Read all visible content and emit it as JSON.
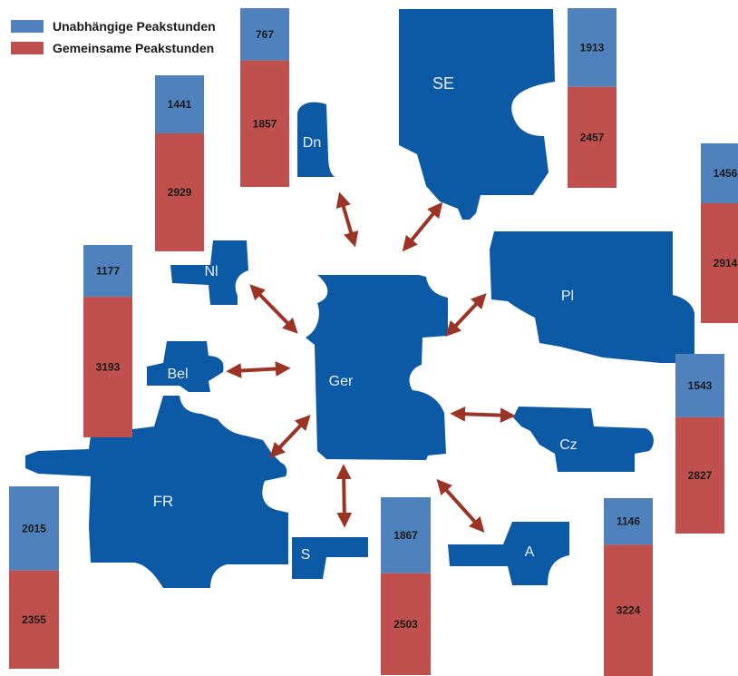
{
  "legend": {
    "independent_label": "Unabhängige Peakstunden",
    "shared_label": "Gemeinsame Peakstunden",
    "independent_color": "#4f81bd",
    "shared_color": "#c0504d"
  },
  "colors": {
    "country_fill": "#0c5aa6",
    "arrow": "#9c3426"
  },
  "countries": {
    "se": "SE",
    "dn": "Dn",
    "nl": "Nl",
    "bel": "Bel",
    "ger": "Ger",
    "pl": "Pl",
    "cz": "Cz",
    "fr": "FR",
    "s": "S",
    "a": "A"
  },
  "chart_data": {
    "type": "bar",
    "categories": [
      "Dn",
      "SE",
      "Nl-Panel",
      "Nl",
      "Pl",
      "Cz",
      "FR",
      "S",
      "A"
    ],
    "series": [
      {
        "name": "Unabhängige Peakstunden",
        "values": [
          767,
          1913,
          1441,
          1177,
          1456,
          1543,
          2015,
          1867,
          1146
        ]
      },
      {
        "name": "Gemeinsame Peakstunden",
        "values": [
          1857,
          2457,
          2929,
          3193,
          2914,
          2827,
          2355,
          2503,
          3224
        ]
      }
    ],
    "bars": [
      {
        "independent": "767",
        "shared": "1857"
      },
      {
        "independent": "1913",
        "shared": "2457"
      },
      {
        "independent": "1441",
        "shared": "2929"
      },
      {
        "independent": "1177",
        "shared": "3193"
      },
      {
        "independent": "1456",
        "shared": "2914"
      },
      {
        "independent": "1543",
        "shared": "2827"
      },
      {
        "independent": "2015",
        "shared": "2355"
      },
      {
        "independent": "1867",
        "shared": "2503"
      },
      {
        "independent": "1146",
        "shared": "3224"
      }
    ]
  }
}
